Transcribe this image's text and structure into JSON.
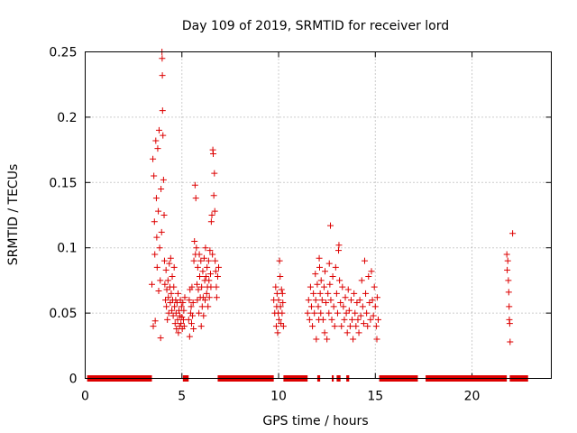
{
  "chart_data": {
    "type": "scatter",
    "title": "Day 109 of 2019, SRMTID for receiver lord",
    "xlabel": "GPS time / hours",
    "ylabel": "SRMTID / TECUs",
    "xlim": [
      0,
      24.1
    ],
    "ylim": [
      0,
      0.25
    ],
    "xticks": [
      0,
      5,
      10,
      15,
      20
    ],
    "xtick_labels": [
      "0",
      "5",
      "10",
      "15",
      "20"
    ],
    "yticks": [
      0,
      0.05,
      0.1,
      0.15,
      0.2,
      0.25
    ],
    "ytick_labels": [
      "0",
      "0.05",
      "0.1",
      "0.15",
      "0.2",
      "0.25"
    ],
    "grid": true,
    "marker": "+",
    "color": "#dd0000",
    "series": [
      {
        "name": "SRMTID",
        "points": [
          [
            3.45,
            0.072
          ],
          [
            3.5,
            0.168
          ],
          [
            3.52,
            0.04
          ],
          [
            3.55,
            0.155
          ],
          [
            3.58,
            0.12
          ],
          [
            3.6,
            0.095
          ],
          [
            3.62,
            0.044
          ],
          [
            3.65,
            0.182
          ],
          [
            3.68,
            0.138
          ],
          [
            3.7,
            0.108
          ],
          [
            3.72,
            0.085
          ],
          [
            3.75,
            0.176
          ],
          [
            3.78,
            0.128
          ],
          [
            3.8,
            0.067
          ],
          [
            3.82,
            0.19
          ],
          [
            3.85,
            0.1
          ],
          [
            3.88,
            0.075
          ],
          [
            3.9,
            0.031
          ],
          [
            3.92,
            0.145
          ],
          [
            3.95,
            0.112
          ],
          [
            3.97,
            0.25
          ],
          [
            3.98,
            0.245
          ],
          [
            3.99,
            0.232
          ],
          [
            4.0,
            0.205
          ],
          [
            4.02,
            0.186
          ],
          [
            4.05,
            0.152
          ],
          [
            4.08,
            0.125
          ],
          [
            4.1,
            0.09
          ],
          [
            4.12,
            0.072
          ],
          [
            4.15,
            0.06
          ],
          [
            4.18,
            0.083
          ],
          [
            4.2,
            0.055
          ],
          [
            4.22,
            0.068
          ],
          [
            4.25,
            0.045
          ],
          [
            4.28,
            0.075
          ],
          [
            4.3,
            0.062
          ],
          [
            4.32,
            0.05
          ],
          [
            4.35,
            0.088
          ],
          [
            4.38,
            0.07
          ],
          [
            4.4,
            0.058
          ],
          [
            4.42,
            0.092
          ],
          [
            4.45,
            0.065
          ],
          [
            4.48,
            0.052
          ],
          [
            4.5,
            0.078
          ],
          [
            4.52,
            0.06
          ],
          [
            4.55,
            0.048
          ],
          [
            4.58,
            0.07
          ],
          [
            4.6,
            0.085
          ],
          [
            4.62,
            0.055
          ],
          [
            4.65,
            0.042
          ],
          [
            4.68,
            0.06
          ],
          [
            4.7,
            0.05
          ],
          [
            4.72,
            0.038
          ],
          [
            4.75,
            0.058
          ],
          [
            4.78,
            0.045
          ],
          [
            4.8,
            0.065
          ],
          [
            4.82,
            0.035
          ],
          [
            4.85,
            0.052
          ],
          [
            4.88,
            0.04
          ],
          [
            4.9,
            0.048
          ],
          [
            4.92,
            0.06
          ],
          [
            4.95,
            0.042
          ],
          [
            4.98,
            0.055
          ],
          [
            5.0,
            0.047
          ],
          [
            5.02,
            0.038
          ],
          [
            5.05,
            0.058
          ],
          [
            5.08,
            0.045
          ],
          [
            5.1,
            0.052
          ],
          [
            5.12,
            0.04
          ],
          [
            5.15,
            0.062
          ],
          [
            5.35,
            0.045
          ],
          [
            5.38,
            0.06
          ],
          [
            5.4,
            0.032
          ],
          [
            5.42,
            0.068
          ],
          [
            5.45,
            0.05
          ],
          [
            5.48,
            0.055
          ],
          [
            5.5,
            0.042
          ],
          [
            5.52,
            0.07
          ],
          [
            5.55,
            0.048
          ],
          [
            5.58,
            0.058
          ],
          [
            5.6,
            0.038
          ],
          [
            5.62,
            0.09
          ],
          [
            5.65,
            0.105
          ],
          [
            5.68,
            0.148
          ],
          [
            5.7,
            0.095
          ],
          [
            5.72,
            0.138
          ],
          [
            5.75,
            0.1
          ],
          [
            5.78,
            0.072
          ],
          [
            5.8,
            0.06
          ],
          [
            5.82,
            0.085
          ],
          [
            5.85,
            0.068
          ],
          [
            5.88,
            0.05
          ],
          [
            5.9,
            0.095
          ],
          [
            5.92,
            0.078
          ],
          [
            5.95,
            0.062
          ],
          [
            5.98,
            0.09
          ],
          [
            6.0,
            0.04
          ],
          [
            6.02,
            0.07
          ],
          [
            6.05,
            0.055
          ],
          [
            6.08,
            0.082
          ],
          [
            6.1,
            0.062
          ],
          [
            6.12,
            0.048
          ],
          [
            6.15,
            0.092
          ],
          [
            6.18,
            0.075
          ],
          [
            6.2,
            0.06
          ],
          [
            6.22,
            0.1
          ],
          [
            6.25,
            0.078
          ],
          [
            6.28,
            0.065
          ],
          [
            6.3,
            0.085
          ],
          [
            6.32,
            0.07
          ],
          [
            6.35,
            0.055
          ],
          [
            6.38,
            0.09
          ],
          [
            6.4,
            0.075
          ],
          [
            6.42,
            0.062
          ],
          [
            6.45,
            0.098
          ],
          [
            6.48,
            0.08
          ],
          [
            6.5,
            0.07
          ],
          [
            6.52,
            0.12
          ],
          [
            6.55,
            0.125
          ],
          [
            6.58,
            0.095
          ],
          [
            6.6,
            0.175
          ],
          [
            6.62,
            0.172
          ],
          [
            6.65,
            0.14
          ],
          [
            6.68,
            0.157
          ],
          [
            6.7,
            0.128
          ],
          [
            6.72,
            0.09
          ],
          [
            6.75,
            0.082
          ],
          [
            6.78,
            0.07
          ],
          [
            6.8,
            0.062
          ],
          [
            6.85,
            0.078
          ],
          [
            6.9,
            0.085
          ],
          [
            9.75,
            0.06
          ],
          [
            9.8,
            0.05
          ],
          [
            9.85,
            0.07
          ],
          [
            9.88,
            0.04
          ],
          [
            9.9,
            0.055
          ],
          [
            9.92,
            0.065
          ],
          [
            9.95,
            0.035
          ],
          [
            9.98,
            0.05
          ],
          [
            10.0,
            0.06
          ],
          [
            10.02,
            0.045
          ],
          [
            10.05,
            0.09
          ],
          [
            10.08,
            0.078
          ],
          [
            10.1,
            0.055
          ],
          [
            10.12,
            0.042
          ],
          [
            10.15,
            0.068
          ],
          [
            10.18,
            0.05
          ],
          [
            10.2,
            0.065
          ],
          [
            10.22,
            0.058
          ],
          [
            10.25,
            0.04
          ],
          [
            11.5,
            0.05
          ],
          [
            11.55,
            0.06
          ],
          [
            11.6,
            0.045
          ],
          [
            11.65,
            0.07
          ],
          [
            11.7,
            0.055
          ],
          [
            11.75,
            0.04
          ],
          [
            11.8,
            0.065
          ],
          [
            11.85,
            0.05
          ],
          [
            11.9,
            0.08
          ],
          [
            11.92,
            0.06
          ],
          [
            11.95,
            0.03
          ],
          [
            12.0,
            0.072
          ],
          [
            12.05,
            0.055
          ],
          [
            12.08,
            0.045
          ],
          [
            12.1,
            0.092
          ],
          [
            12.12,
            0.085
          ],
          [
            12.15,
            0.065
          ],
          [
            12.18,
            0.05
          ],
          [
            12.2,
            0.075
          ],
          [
            12.25,
            0.06
          ],
          [
            12.3,
            0.045
          ],
          [
            12.35,
            0.07
          ],
          [
            12.38,
            0.035
          ],
          [
            12.4,
            0.082
          ],
          [
            12.45,
            0.058
          ],
          [
            12.5,
            0.03
          ],
          [
            12.55,
            0.065
          ],
          [
            12.6,
            0.05
          ],
          [
            12.62,
            0.088
          ],
          [
            12.65,
            0.072
          ],
          [
            12.68,
            0.117
          ],
          [
            12.7,
            0.06
          ],
          [
            12.75,
            0.045
          ],
          [
            12.8,
            0.078
          ],
          [
            12.85,
            0.055
          ],
          [
            12.9,
            0.04
          ],
          [
            12.95,
            0.085
          ],
          [
            13.0,
            0.065
          ],
          [
            13.05,
            0.05
          ],
          [
            13.1,
            0.098
          ],
          [
            13.12,
            0.102
          ],
          [
            13.15,
            0.075
          ],
          [
            13.2,
            0.058
          ],
          [
            13.25,
            0.04
          ],
          [
            13.3,
            0.07
          ],
          [
            13.35,
            0.055
          ],
          [
            13.4,
            0.045
          ],
          [
            13.45,
            0.062
          ],
          [
            13.5,
            0.05
          ],
          [
            13.55,
            0.035
          ],
          [
            13.6,
            0.068
          ],
          [
            13.65,
            0.052
          ],
          [
            13.7,
            0.04
          ],
          [
            13.75,
            0.06
          ],
          [
            13.8,
            0.045
          ],
          [
            13.85,
            0.03
          ],
          [
            13.9,
            0.065
          ],
          [
            13.95,
            0.05
          ],
          [
            14.0,
            0.04
          ],
          [
            14.05,
            0.058
          ],
          [
            14.1,
            0.045
          ],
          [
            14.15,
            0.035
          ],
          [
            14.2,
            0.06
          ],
          [
            14.25,
            0.048
          ],
          [
            14.3,
            0.075
          ],
          [
            14.35,
            0.055
          ],
          [
            14.4,
            0.042
          ],
          [
            14.45,
            0.09
          ],
          [
            14.5,
            0.065
          ],
          [
            14.55,
            0.05
          ],
          [
            14.6,
            0.04
          ],
          [
            14.65,
            0.078
          ],
          [
            14.7,
            0.058
          ],
          [
            14.75,
            0.045
          ],
          [
            14.8,
            0.082
          ],
          [
            14.85,
            0.06
          ],
          [
            14.9,
            0.048
          ],
          [
            14.95,
            0.07
          ],
          [
            15.0,
            0.055
          ],
          [
            15.05,
            0.04
          ],
          [
            15.08,
            0.03
          ],
          [
            15.1,
            0.062
          ],
          [
            15.15,
            0.045
          ],
          [
            21.8,
            0.095
          ],
          [
            21.82,
            0.083
          ],
          [
            21.85,
            0.09
          ],
          [
            21.88,
            0.075
          ],
          [
            21.9,
            0.066
          ],
          [
            21.92,
            0.055
          ],
          [
            21.93,
            0.045
          ],
          [
            21.95,
            0.042
          ],
          [
            21.97,
            0.028
          ],
          [
            22.1,
            0.111
          ]
        ]
      }
    ],
    "zero_band_segments": [
      [
        0.1,
        3.45
      ],
      [
        5.05,
        5.35
      ],
      [
        6.85,
        9.75
      ],
      [
        10.25,
        11.5
      ],
      [
        12.0,
        12.15
      ],
      [
        12.75,
        12.85
      ],
      [
        13.0,
        13.2
      ],
      [
        13.5,
        13.65
      ],
      [
        15.2,
        17.2
      ],
      [
        17.6,
        21.8
      ],
      [
        21.95,
        22.9
      ]
    ]
  }
}
